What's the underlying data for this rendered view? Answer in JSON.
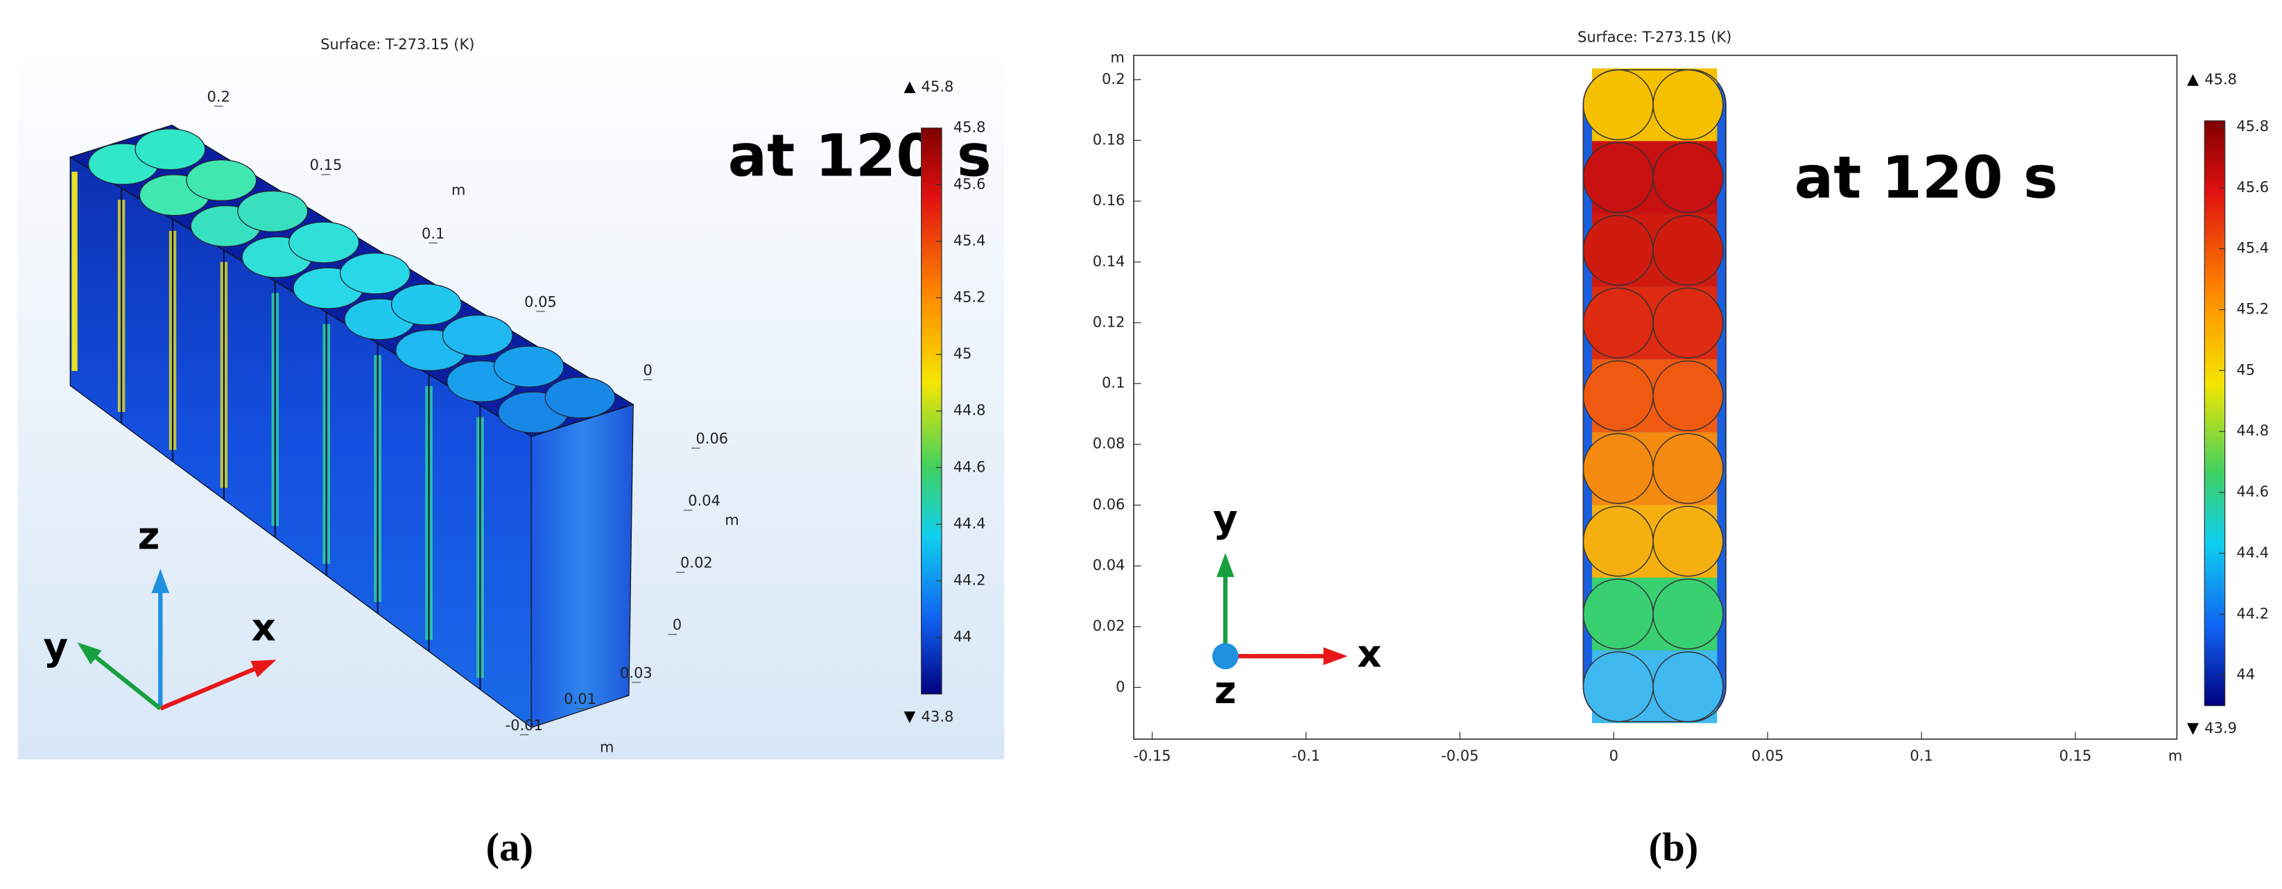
{
  "panels": [
    {
      "label": "(a)",
      "title": "Surface: T-273.15 (K)",
      "annotation": "at 120 s",
      "triad": [
        "z",
        "y",
        "x"
      ],
      "axes": {
        "x": {
          "ticks": [
            0.2,
            0.15,
            0.1,
            0.05,
            0
          ],
          "lim": [
            0,
            0.2
          ],
          "unit": "m"
        },
        "z": {
          "ticks": [
            0.06,
            0.04,
            0.02,
            0
          ],
          "lim": [
            0,
            0.06
          ],
          "unit": "m"
        },
        "y": {
          "ticks": [
            0.03,
            0.01,
            -0.01
          ],
          "lim": [
            -0.01,
            0.03
          ],
          "unit": "m"
        }
      },
      "colorbar": {
        "max": 45.8,
        "min": 43.8,
        "lim": [
          43.8,
          45.8
        ],
        "ticks": [
          45.8,
          45.6,
          45.4,
          45.2,
          45,
          44.8,
          44.6,
          44.4,
          44.2,
          44
        ]
      }
    },
    {
      "label": "(b)",
      "title": "Surface: T-273.15 (K)",
      "annotation": "at 120 s",
      "triad": [
        "y",
        "x",
        "z"
      ],
      "axes": {
        "x": {
          "ticks": [
            -0.15,
            -0.1,
            -0.05,
            0,
            0.05,
            0.1,
            0.15
          ],
          "lim": [
            -0.156,
            0.183
          ],
          "unit": "m"
        },
        "y": {
          "ticks": [
            0,
            0.02,
            0.04,
            0.06,
            0.08,
            0.1,
            0.12,
            0.14,
            0.16,
            0.18,
            0.2
          ],
          "lim": [
            -0.017,
            0.208
          ],
          "unit": "m"
        }
      },
      "colorbar": {
        "max": 45.8,
        "min": 43.9,
        "lim": [
          43.9,
          45.82
        ],
        "ticks": [
          45.8,
          45.6,
          45.4,
          45.2,
          45,
          44.8,
          44.6,
          44.4,
          44.2,
          44
        ]
      }
    }
  ]
}
